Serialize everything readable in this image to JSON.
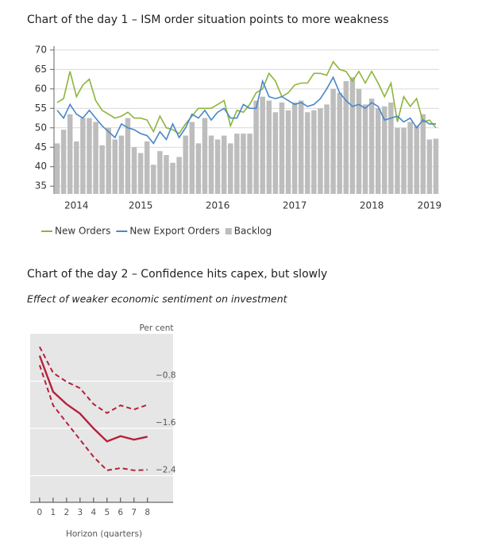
{
  "chart_data": [
    {
      "type": "combo",
      "title": "Chart of the day 1 – ISM order situation points to more weakness",
      "categories": [
        null,
        null,
        null,
        "2014",
        null,
        null,
        null,
        null,
        null,
        null,
        null,
        null,
        null,
        "2015",
        null,
        null,
        null,
        null,
        null,
        null,
        null,
        null,
        null,
        null,
        null,
        "2016",
        null,
        null,
        null,
        null,
        null,
        null,
        null,
        null,
        null,
        null,
        null,
        "2017",
        null,
        null,
        null,
        null,
        null,
        null,
        null,
        null,
        null,
        null,
        null,
        "2018",
        null,
        null,
        null,
        null,
        null,
        null,
        null,
        null,
        "2019",
        null
      ],
      "ylim": [
        33,
        71
      ],
      "yticks": [
        35,
        40,
        45,
        50,
        55,
        60,
        65,
        70
      ],
      "grid": true,
      "series": [
        {
          "name": "New Orders",
          "kind": "line",
          "color": "#8db53c",
          "values": [
            56.5,
            57.5,
            64.5,
            58,
            61,
            62.5,
            57,
            54.5,
            53.5,
            52.5,
            53,
            54,
            52.5,
            52.5,
            52,
            49,
            53,
            50,
            49.5,
            48.5,
            51,
            53,
            55,
            55,
            55,
            56,
            57,
            50.5,
            54.5,
            54,
            56,
            59,
            60,
            64,
            62,
            58,
            59,
            61,
            61.5,
            61.5,
            64,
            64,
            63.5,
            67,
            65,
            64.5,
            62,
            64.5,
            61.5,
            64.5,
            61.5,
            58,
            61.5,
            51.5,
            58,
            55.5,
            57.5,
            51.5,
            52,
            50
          ]
        },
        {
          "name": "New Export Orders",
          "kind": "line",
          "color": "#4a86c8",
          "values": [
            54.5,
            52.5,
            56,
            53.5,
            52.5,
            54.5,
            52.5,
            50.5,
            49,
            47.5,
            51,
            50,
            49.5,
            48.5,
            48,
            46,
            49,
            47,
            51,
            47.5,
            50,
            53.5,
            52.5,
            54.5,
            52,
            54,
            55,
            52.5,
            52.5,
            56,
            55,
            55,
            62,
            58,
            57.5,
            58,
            57,
            56,
            56.5,
            55.5,
            56,
            57.5,
            60,
            63,
            59,
            57,
            55.5,
            56,
            55,
            56.5,
            55.5,
            52,
            52.5,
            53,
            51.5,
            52.5,
            50,
            52,
            51,
            51
          ]
        },
        {
          "name": "Backlog",
          "kind": "bar",
          "color": "#bdbdbd",
          "values": [
            46,
            49.5,
            53.5,
            46.5,
            52.5,
            52.5,
            51.5,
            45.5,
            50,
            47,
            48,
            52.5,
            45,
            43.5,
            46.5,
            40.5,
            44,
            43,
            41,
            42.5,
            48,
            51.5,
            46,
            52.5,
            48,
            47,
            48,
            46,
            48.5,
            48.5,
            48.5,
            57,
            58,
            57,
            54,
            56.5,
            54.5,
            56.5,
            57,
            54,
            54.5,
            55,
            56,
            60,
            59,
            62,
            63,
            60,
            56,
            57.5,
            55,
            55.5,
            56.5,
            50,
            50,
            51.5,
            50.5,
            53.5,
            47,
            47.2
          ]
        }
      ]
    },
    {
      "type": "line",
      "title": "Chart of the day 2 – Confidence hits capex, but slowly",
      "subtitle": "Effect of weaker economic sentiment on investment",
      "y_label": "Per cent",
      "x_label": "Horizon (quarters)",
      "x": [
        0,
        1,
        2,
        3,
        4,
        5,
        6,
        7,
        8
      ],
      "xlim": [
        -0.7,
        9.9
      ],
      "xticks": [
        0,
        1,
        2,
        3,
        4,
        5,
        6,
        7,
        8
      ],
      "ylim": [
        -2.85,
        0
      ],
      "yticks": [
        {
          "value": -0.8,
          "label": "−0.8"
        },
        {
          "value": -1.6,
          "label": "−1.6"
        },
        {
          "value": -2.4,
          "label": "−2.4"
        }
      ],
      "grid": true,
      "series": [
        {
          "color": "#b5213a",
          "dashed": false,
          "values": [
            -0.37,
            -0.98,
            -1.19,
            -1.35,
            -1.6,
            -1.82,
            -1.73,
            -1.79,
            -1.74
          ]
        },
        {
          "color": "#b5213a",
          "dashed": true,
          "values": [
            -0.22,
            -0.66,
            -0.81,
            -0.92,
            -1.19,
            -1.34,
            -1.21,
            -1.28,
            -1.2
          ]
        },
        {
          "color": "#b5213a",
          "dashed": true,
          "values": [
            -0.53,
            -1.21,
            -1.5,
            -1.79,
            -2.08,
            -2.31,
            -2.27,
            -2.31,
            -2.3
          ]
        }
      ]
    }
  ]
}
